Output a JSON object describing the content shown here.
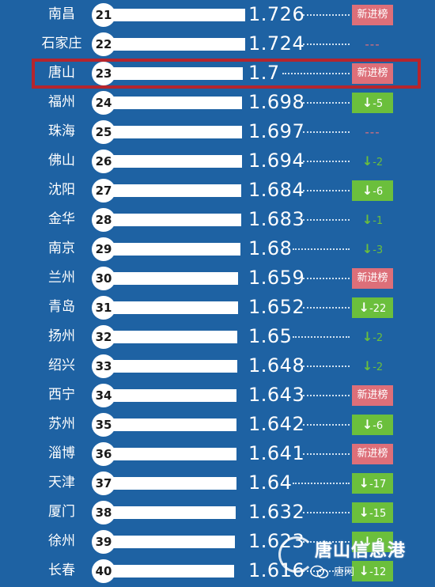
{
  "chart_data": {
    "type": "bar",
    "categories": [
      "南昌",
      "石家庄",
      "唐山",
      "福州",
      "珠海",
      "佛山",
      "沈阳",
      "金华",
      "南京",
      "兰州",
      "青岛",
      "扬州",
      "绍兴",
      "西宁",
      "苏州",
      "淄博",
      "天津",
      "厦门",
      "徐州",
      "长春"
    ],
    "ranks": [
      "21",
      "22",
      "23",
      "24",
      "25",
      "26",
      "27",
      "28",
      "29",
      "30",
      "31",
      "32",
      "33",
      "34",
      "35",
      "36",
      "37",
      "38",
      "39",
      "40"
    ],
    "values": [
      1.726,
      1.724,
      1.7,
      1.698,
      1.697,
      1.694,
      1.684,
      1.683,
      1.68,
      1.659,
      1.652,
      1.65,
      1.648,
      1.643,
      1.642,
      1.641,
      1.64,
      1.632,
      1.623,
      1.616
    ],
    "value_labels": [
      "1.726",
      "1.724",
      "1.7",
      "1.698",
      "1.697",
      "1.694",
      "1.684",
      "1.683",
      "1.68",
      "1.659",
      "1.652",
      "1.65",
      "1.648",
      "1.643",
      "1.642",
      "1.641",
      "1.64",
      "1.632",
      "1.623",
      "1.616"
    ],
    "changes": [
      {
        "kind": "new",
        "label": "新进榜"
      },
      {
        "kind": "none",
        "label": "---"
      },
      {
        "kind": "new",
        "label": "新进榜"
      },
      {
        "kind": "down",
        "label": "-5",
        "boxed": true
      },
      {
        "kind": "none",
        "label": "---"
      },
      {
        "kind": "down",
        "label": "-2",
        "boxed": false
      },
      {
        "kind": "down",
        "label": "-6",
        "boxed": true
      },
      {
        "kind": "down",
        "label": "-1",
        "boxed": false
      },
      {
        "kind": "down",
        "label": "-3",
        "boxed": false
      },
      {
        "kind": "new",
        "label": "新进榜"
      },
      {
        "kind": "down",
        "label": "-22",
        "boxed": true
      },
      {
        "kind": "down",
        "label": "-2",
        "boxed": false
      },
      {
        "kind": "down",
        "label": "-2",
        "boxed": false
      },
      {
        "kind": "new",
        "label": "新进榜"
      },
      {
        "kind": "down",
        "label": "-6",
        "boxed": true
      },
      {
        "kind": "new",
        "label": "新进榜"
      },
      {
        "kind": "down",
        "label": "-17",
        "boxed": true
      },
      {
        "kind": "down",
        "label": "-15",
        "boxed": true
      },
      {
        "kind": "down",
        "label": "-8",
        "boxed": true
      },
      {
        "kind": "down",
        "label": "-12",
        "boxed": true
      }
    ],
    "highlighted_category": "唐山",
    "colors": {
      "background": "#1e62a3",
      "bar": "#ffffff",
      "new_badge": "#dd6f79",
      "down_badge": "#6bbf3c",
      "highlight": "#b5252d"
    }
  },
  "watermark": {
    "title": "唐山信息港",
    "subtitle": "唐网"
  }
}
